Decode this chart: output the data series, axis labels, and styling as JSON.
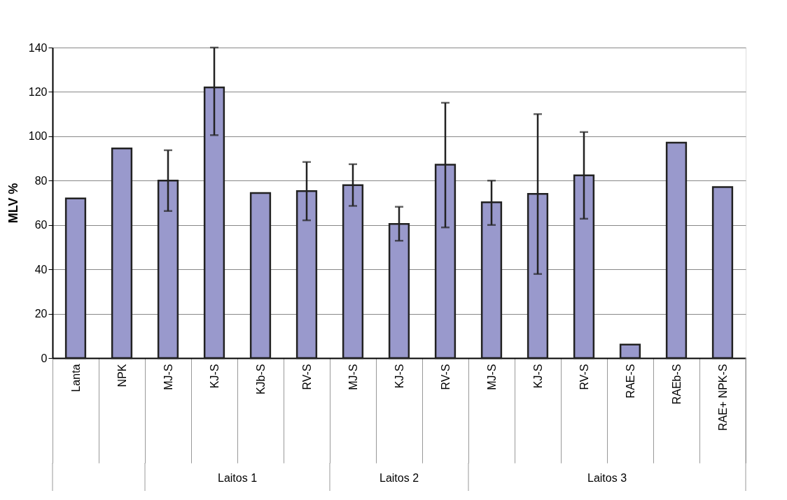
{
  "chart_data": {
    "type": "bar",
    "ylabel": "MLV %",
    "categories": [
      "Lanta",
      "NPK",
      "MJ-S",
      "KJ-S",
      "KJb-S",
      "RV-S",
      "MJ-S",
      "KJ-S",
      "RV-S",
      "MJ-S",
      "KJ-S",
      "RV-S",
      "RAE-S",
      "RAEb-S",
      "RAE+ NPK-S"
    ],
    "values": [
      72,
      94.5,
      80,
      122,
      74.4,
      75.3,
      78,
      60.5,
      87.2,
      70.2,
      74,
      82.4,
      6.1,
      97.1,
      77.1
    ],
    "errors": [
      null,
      null,
      [
        66.3,
        93.7
      ],
      [
        100.5,
        140
      ],
      null,
      [
        62.1,
        88.4
      ],
      [
        68.6,
        87.4
      ],
      [
        52.9,
        68.2
      ],
      [
        58.9,
        115.1
      ],
      [
        60,
        80
      ],
      [
        37.9,
        110
      ],
      [
        62.8,
        101.9
      ],
      null,
      null,
      null
    ],
    "color": "#9999cc",
    "annotations": [
      "Laitos 1",
      "Laitos 2",
      "Laitos 3"
    ],
    "ylim": [
      0,
      140
    ],
    "yticks": [
      0,
      20,
      40,
      60,
      80,
      100,
      120,
      140
    ],
    "grid": "y"
  }
}
